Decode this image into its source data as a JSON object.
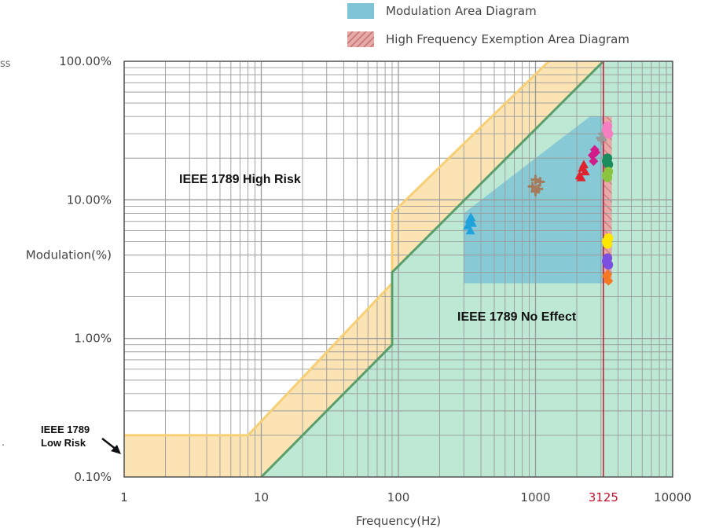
{
  "chart_data": {
    "type": "scatter",
    "title": "",
    "xlabel": "Frequency(Hz)",
    "ylabel": "Modulation(%)",
    "x_scale": "log",
    "y_scale": "log",
    "xlim": [
      1,
      10000
    ],
    "ylim": [
      0.1,
      100
    ],
    "grid": true,
    "legend_position": "top-right",
    "x_ticks": [
      {
        "value": 1,
        "label": "1"
      },
      {
        "value": 10,
        "label": "10"
      },
      {
        "value": 100,
        "label": "100"
      },
      {
        "value": 1000,
        "label": "1000"
      },
      {
        "value": 3125,
        "label": "3125",
        "color": "#c8102e"
      },
      {
        "value": 10000,
        "label": "10000"
      }
    ],
    "y_ticks": [
      {
        "value": 0.1,
        "label": "0.10%"
      },
      {
        "value": 1,
        "label": "1.00%"
      },
      {
        "value": 10,
        "label": "10.00%"
      },
      {
        "value": 100,
        "label": "100.00%"
      }
    ],
    "legend": [
      {
        "label": "Modulation Area Diagram",
        "color": "#7ec4d6",
        "pattern": "solid"
      },
      {
        "label": "High Frequency Exemption Area Diagram",
        "color": "#e8a9a9",
        "pattern": "hatched"
      }
    ],
    "risk_boundaries": {
      "low_risk_line": [
        [
          1,
          0.2
        ],
        [
          8,
          0.2
        ],
        [
          90,
          2.5
        ],
        [
          90,
          8
        ],
        [
          1250,
          100
        ]
      ],
      "no_effect_line": [
        [
          10,
          0.1
        ],
        [
          90,
          0.9
        ],
        [
          90,
          3
        ],
        [
          3125,
          100
        ]
      ],
      "exemption_frequency": 3125
    },
    "regions": [
      {
        "name": "IEEE 1789 High Risk",
        "color": "#ffffff"
      },
      {
        "name": "IEEE 1789 Low Risk",
        "color": "#fbe3b4"
      },
      {
        "name": "IEEE 1789 No Effect",
        "color": "#bde8d4"
      }
    ],
    "region_labels": {
      "high_risk": "IEEE 1789 High Risk",
      "no_effect": "IEEE 1789 No Effect",
      "low_risk_line1": "IEEE 1789",
      "low_risk_line2": "Low Risk"
    },
    "modulation_area": [
      [
        300,
        2.5
      ],
      [
        300,
        8
      ],
      [
        1000,
        20
      ],
      [
        2500,
        40
      ],
      [
        3600,
        40
      ],
      [
        3600,
        2.5
      ]
    ],
    "exemption_area": {
      "x_range": [
        3125,
        3600
      ],
      "y_range": [
        2.5,
        40
      ]
    },
    "series": [
      {
        "color": "#1fa3dc",
        "marker": "triangle",
        "points": [
          [
            320,
            6.5
          ],
          [
            330,
            7.2
          ],
          [
            335,
            6.0
          ],
          [
            345,
            6.8
          ],
          [
            338,
            7.5
          ]
        ]
      },
      {
        "color": "#a67a5b",
        "marker": "cross",
        "points": [
          [
            950,
            12.5
          ],
          [
            1000,
            14
          ],
          [
            1050,
            12
          ],
          [
            1080,
            13.5
          ],
          [
            1000,
            11.5
          ]
        ]
      },
      {
        "color": "#e0222e",
        "marker": "triangle",
        "points": [
          [
            2100,
            15
          ],
          [
            2200,
            17
          ],
          [
            2300,
            16
          ],
          [
            2150,
            14.5
          ],
          [
            2250,
            18
          ]
        ]
      },
      {
        "color": "#d11d8a",
        "marker": "diamond",
        "points": [
          [
            2600,
            21
          ],
          [
            2700,
            23
          ],
          [
            2650,
            19
          ],
          [
            2750,
            22
          ]
        ]
      },
      {
        "color": "#999999",
        "marker": "cross",
        "points": [
          [
            3000,
            28
          ],
          [
            3100,
            30
          ],
          [
            3050,
            27
          ]
        ]
      },
      {
        "color": "#f47ec0",
        "marker": "circle",
        "points": [
          [
            3300,
            32
          ],
          [
            3400,
            30
          ],
          [
            3350,
            34
          ]
        ]
      },
      {
        "color": "#1a8c5b",
        "marker": "circle",
        "points": [
          [
            3300,
            19
          ],
          [
            3400,
            18
          ],
          [
            3350,
            20
          ]
        ]
      },
      {
        "color": "#8bc53f",
        "marker": "circle",
        "points": [
          [
            3300,
            15
          ],
          [
            3400,
            16
          ],
          [
            3350,
            14.5
          ]
        ]
      },
      {
        "color": "#ffe600",
        "marker": "circle",
        "points": [
          [
            3300,
            5
          ],
          [
            3400,
            5.3
          ],
          [
            3350,
            4.8
          ]
        ]
      },
      {
        "color": "#7b4fe0",
        "marker": "circle",
        "points": [
          [
            3300,
            3.6
          ],
          [
            3400,
            3.4
          ],
          [
            3350,
            3.8
          ]
        ]
      },
      {
        "color": "#f47721",
        "marker": "diamond",
        "points": [
          [
            3300,
            2.8
          ],
          [
            3400,
            2.6
          ],
          [
            3350,
            2.9
          ]
        ]
      }
    ]
  },
  "cut_labels": {
    "top_left": "ss",
    "mid_left": "."
  }
}
